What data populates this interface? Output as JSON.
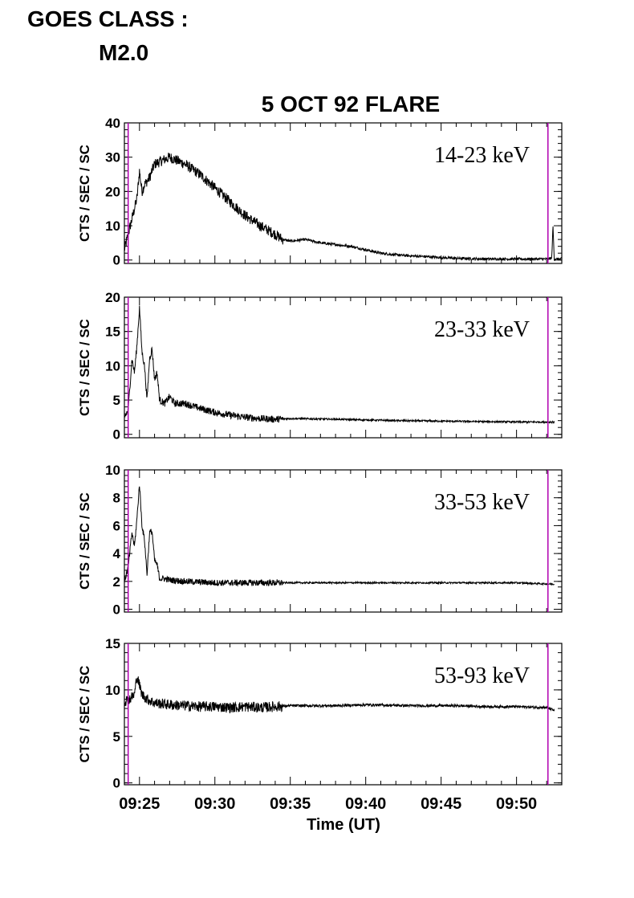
{
  "header": {
    "goes_line1": "GOES CLASS :",
    "goes_line2": "M2.0"
  },
  "chart_data": {
    "type": "line",
    "title": "5 OCT 92 FLARE",
    "xlabel": "Time (UT)",
    "xlim": [
      "09:24",
      "09:53"
    ],
    "xticks": [
      "09:25",
      "09:30",
      "09:35",
      "09:40",
      "09:45",
      "09:50"
    ],
    "markers": [
      "09:24:15",
      "09:52:05"
    ],
    "marker_color": "#b000b0",
    "line_color": "#000000",
    "panels": [
      {
        "band_label": "14-23 keV",
        "ylabel": "CTS / SEC / SC",
        "ylim": [
          -1,
          40
        ],
        "yticks": [
          "40",
          "30",
          "20",
          "10",
          "0"
        ],
        "series": {
          "t": [
            "09:24:00",
            "09:24:30",
            "09:24:50",
            "09:25:00",
            "09:25:10",
            "09:25:20",
            "09:25:40",
            "09:26:00",
            "09:26:30",
            "09:27:00",
            "09:27:30",
            "09:28:00",
            "09:29:00",
            "09:30:00",
            "09:31:00",
            "09:32:00",
            "09:33:00",
            "09:34:00",
            "09:34:30",
            "09:35:00",
            "09:36:00",
            "09:37:00",
            "09:38:00",
            "09:39:00",
            "09:40:00",
            "09:41:00",
            "09:42:00",
            "09:43:00",
            "09:44:00",
            "09:45:00",
            "09:46:00",
            "09:48:00",
            "09:50:00",
            "09:52:00",
            "09:52:20",
            "09:52:25",
            "09:52:30",
            "09:53:00"
          ],
          "v": [
            3,
            12,
            18,
            26,
            20,
            22,
            24,
            28,
            29,
            30,
            29,
            28,
            25,
            21,
            17,
            13,
            10,
            7.5,
            6,
            5.5,
            6,
            5,
            4.5,
            4,
            3,
            2,
            1.5,
            1.2,
            1,
            0.7,
            0.5,
            0.3,
            0.3,
            0.3,
            0.5,
            10,
            0.3,
            0.3
          ]
        }
      },
      {
        "band_label": "23-33 keV",
        "ylabel": "CTS / SEC / SC",
        "ylim": [
          -0.5,
          20
        ],
        "yticks": [
          "20",
          "15",
          "10",
          "5",
          "0"
        ],
        "series": {
          "t": [
            "09:24:00",
            "09:24:15",
            "09:24:30",
            "09:24:40",
            "09:24:50",
            "09:25:00",
            "09:25:10",
            "09:25:20",
            "09:25:30",
            "09:25:40",
            "09:25:50",
            "09:26:00",
            "09:26:10",
            "09:26:20",
            "09:26:40",
            "09:27:00",
            "09:27:20",
            "09:28:00",
            "09:29:00",
            "09:30:00",
            "09:31:00",
            "09:32:00",
            "09:33:00",
            "09:34:00",
            "09:35:00",
            "09:38:00",
            "09:42:00",
            "09:46:00",
            "09:50:00",
            "09:52:30"
          ],
          "v": [
            2.5,
            3.5,
            11,
            9,
            13,
            18.5,
            12,
            10,
            5,
            11,
            12.5,
            8,
            9,
            5,
            4.5,
            5.5,
            4.5,
            4.5,
            3.8,
            3.2,
            2.8,
            2.5,
            2.3,
            2.2,
            2.3,
            2.2,
            2.0,
            1.9,
            1.8,
            1.8
          ]
        }
      },
      {
        "band_label": "33-53 keV",
        "ylabel": "CTS / SEC / SC",
        "ylim": [
          -0.2,
          10
        ],
        "yticks": [
          "10",
          "8",
          "6",
          "4",
          "2",
          "0"
        ],
        "series": {
          "t": [
            "09:24:00",
            "09:24:15",
            "09:24:30",
            "09:24:40",
            "09:24:50",
            "09:25:00",
            "09:25:10",
            "09:25:20",
            "09:25:30",
            "09:25:40",
            "09:25:50",
            "09:26:00",
            "09:26:10",
            "09:26:20",
            "09:26:40",
            "09:27:00",
            "09:28:00",
            "09:30:00",
            "09:32:00",
            "09:34:00",
            "09:35:00",
            "09:40:00",
            "09:45:00",
            "09:50:00",
            "09:52:30"
          ],
          "v": [
            2,
            3,
            5.5,
            4.5,
            6.5,
            9,
            6,
            5,
            2.5,
            5.5,
            5.6,
            3.5,
            3.2,
            2.2,
            2.2,
            2.1,
            2.0,
            1.9,
            1.9,
            1.9,
            1.9,
            1.9,
            1.9,
            1.9,
            1.8
          ]
        }
      },
      {
        "band_label": "53-93 keV",
        "ylabel": "CTS / SEC / SC",
        "ylim": [
          -0.2,
          15
        ],
        "yticks": [
          "15",
          "10",
          "5",
          "0"
        ],
        "series": {
          "t": [
            "09:24:00",
            "09:24:20",
            "09:24:40",
            "09:24:50",
            "09:25:00",
            "09:25:10",
            "09:25:30",
            "09:26:00",
            "09:27:00",
            "09:28:00",
            "09:29:00",
            "09:30:00",
            "09:31:00",
            "09:32:00",
            "09:33:00",
            "09:34:00",
            "09:35:00",
            "09:38:00",
            "09:40:00",
            "09:43:00",
            "09:46:00",
            "09:48:00",
            "09:50:00",
            "09:52:00",
            "09:52:30"
          ],
          "v": [
            8.8,
            9.0,
            9.5,
            11.5,
            10.5,
            9.5,
            9,
            8.6,
            8.4,
            8.3,
            8.2,
            8.2,
            8.1,
            8.2,
            8.1,
            8.2,
            8.3,
            8.3,
            8.4,
            8.3,
            8.3,
            8.2,
            8.2,
            8.1,
            7.8
          ]
        }
      }
    ]
  }
}
